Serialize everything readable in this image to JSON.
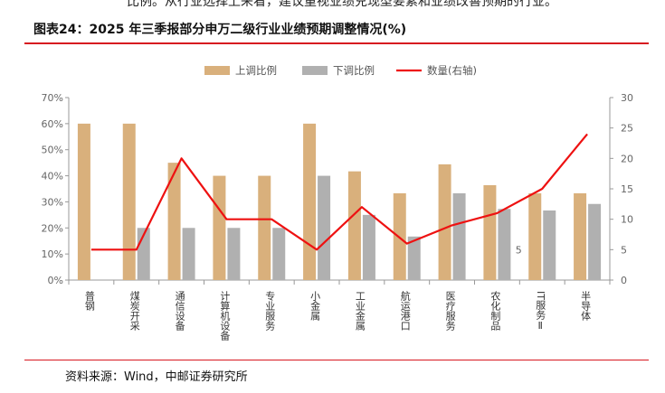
{
  "top_fragment": "比例。从行业选择上来看，建议重视业绩兑现型要素和业绩改善预期的行业。",
  "title": "图表24：2025 年三季报部分申万二级行业业绩预期调整情况(%)",
  "source": "资料来源：Wind，中邮证券研究所",
  "colors": {
    "up": "#d9b07c",
    "down": "#b0b0b0",
    "count": "#ee1111",
    "accent": "#d71920"
  },
  "chart_data": {
    "type": "bar",
    "categories": [
      "普钢",
      "煤炭开采",
      "通信设备",
      "计算机设备",
      "专业服务",
      "小金属",
      "工业金属",
      "航运港口",
      "医疗服务",
      "农化制品",
      "IT服务Ⅱ",
      "半导体"
    ],
    "series": [
      {
        "name": "上调比例",
        "type": "bar",
        "axis": "left",
        "values": [
          60,
          60,
          45,
          40,
          40,
          60,
          41.7,
          33.3,
          44.4,
          36.4,
          33.3,
          33.3
        ]
      },
      {
        "name": "下调比例",
        "type": "bar",
        "axis": "left",
        "values": [
          0,
          20,
          20,
          20,
          20,
          40,
          25,
          16.7,
          33.3,
          27.3,
          26.7,
          29.2
        ]
      },
      {
        "name": "数量(右轴)",
        "type": "line",
        "axis": "right",
        "values": [
          5,
          5,
          20,
          10,
          10,
          5,
          12,
          6,
          9,
          11,
          15,
          24
        ]
      }
    ],
    "y_left": {
      "min": 0,
      "max": 70,
      "step": 10,
      "format": "percent",
      "ticks": [
        "0%",
        "10%",
        "20%",
        "30%",
        "40%",
        "50%",
        "60%",
        "70%"
      ]
    },
    "y_right": {
      "min": 0,
      "max": 30,
      "step": 5,
      "ticks": [
        "0",
        "5",
        "10",
        "15",
        "20",
        "25",
        "30"
      ]
    },
    "stray_label": "5",
    "legend_position": "top-center",
    "grid": false
  }
}
